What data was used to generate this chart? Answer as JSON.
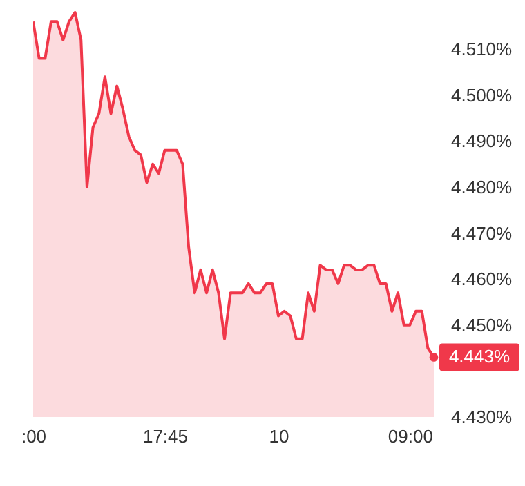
{
  "chart_data": {
    "type": "area",
    "categories": [
      ":00",
      null,
      null,
      null,
      null,
      null,
      null,
      null,
      null,
      null,
      null,
      null,
      null,
      null,
      null,
      null,
      null,
      null,
      null,
      null,
      null,
      null,
      "17:45",
      null,
      null,
      null,
      null,
      null,
      null,
      null,
      null,
      null,
      null,
      null,
      null,
      null,
      null,
      null,
      null,
      null,
      null,
      "10",
      null,
      null,
      null,
      null,
      null,
      null,
      null,
      null,
      null,
      null,
      null,
      null,
      null,
      null,
      null,
      null,
      null,
      null,
      null,
      null,
      null,
      "09:00",
      null,
      null,
      null,
      null
    ],
    "series": [
      {
        "color": "#f0384a",
        "values": [
          4.516,
          4.508,
          4.508,
          4.516,
          4.516,
          4.512,
          4.516,
          4.518,
          4.512,
          4.48,
          4.493,
          4.496,
          4.504,
          4.496,
          4.502,
          4.497,
          4.491,
          4.488,
          4.487,
          4.481,
          4.485,
          4.483,
          4.488,
          4.488,
          4.488,
          4.485,
          4.467,
          4.457,
          4.462,
          4.457,
          4.462,
          4.457,
          4.447,
          4.457,
          4.457,
          4.457,
          4.459,
          4.457,
          4.457,
          4.459,
          4.459,
          4.452,
          4.453,
          4.452,
          4.447,
          4.447,
          4.457,
          4.453,
          4.463,
          4.462,
          4.462,
          4.459,
          4.463,
          4.463,
          4.462,
          4.462,
          4.463,
          4.463,
          4.459,
          4.459,
          4.453,
          4.457,
          4.45,
          4.45,
          4.453,
          4.453,
          4.445,
          4.443
        ]
      }
    ],
    "ylim": [
      4.43,
      4.5195
    ],
    "yticks": [
      {
        "value": 4.43,
        "label": "4.430%"
      },
      {
        "value": 4.45,
        "label": "4.450%"
      },
      {
        "value": 4.46,
        "label": "4.460%"
      },
      {
        "value": 4.47,
        "label": "4.470%"
      },
      {
        "value": 4.48,
        "label": "4.480%"
      },
      {
        "value": 4.49,
        "label": "4.490%"
      },
      {
        "value": 4.5,
        "label": "4.500%"
      },
      {
        "value": 4.51,
        "label": "4.510%"
      }
    ],
    "annotations": [
      "4.443%"
    ]
  }
}
